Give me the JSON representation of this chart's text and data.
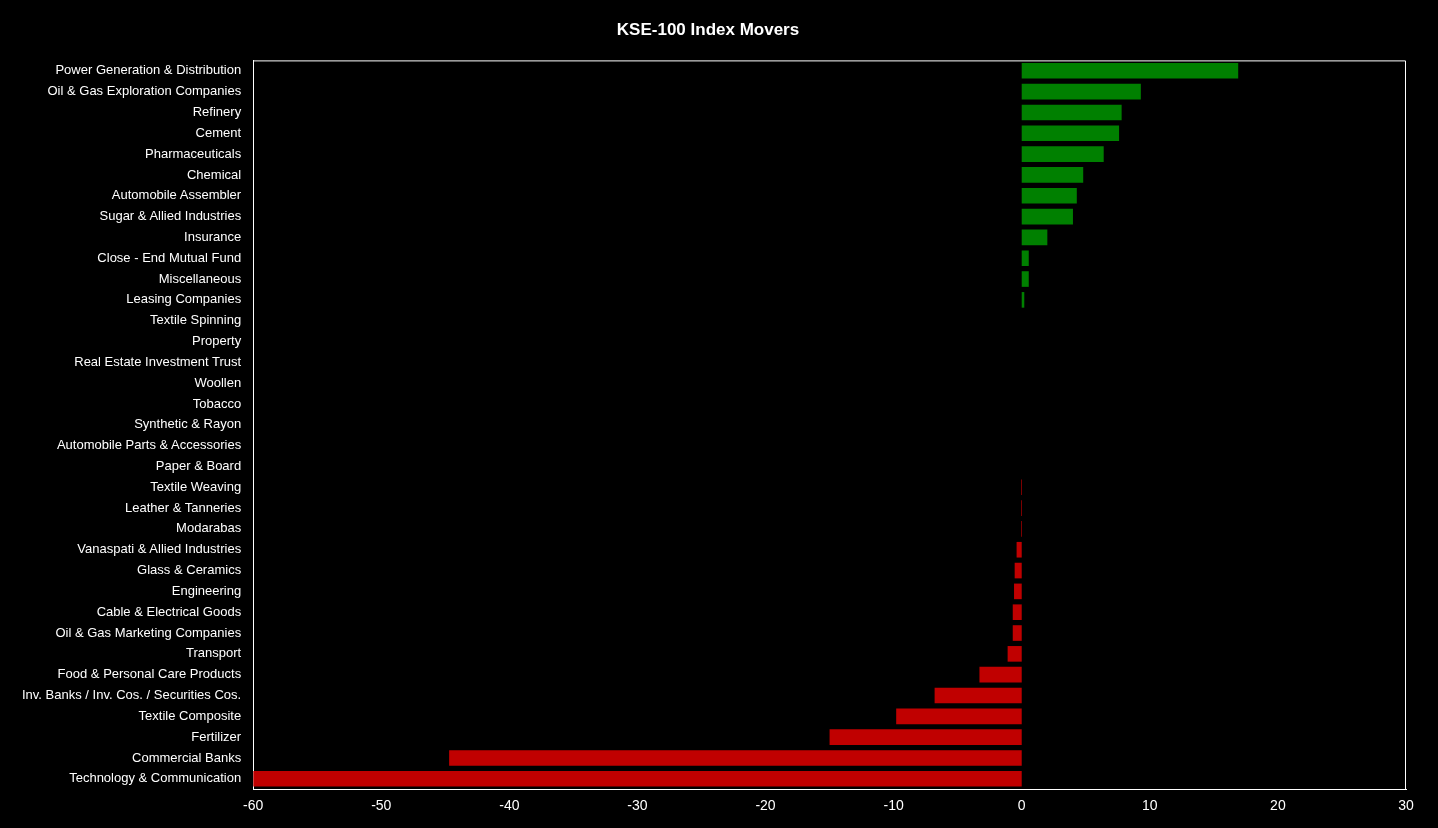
{
  "chart_data": {
    "type": "bar",
    "title": "KSE-100 Index Movers",
    "orientation": "horizontal",
    "categories": [
      "Power Generation & Distribution",
      "Oil & Gas Exploration Companies",
      "Refinery",
      "Cement",
      "Pharmaceuticals",
      "Chemical",
      "Automobile Assembler",
      "Sugar & Allied Industries",
      "Insurance",
      "Close - End Mutual Fund",
      "Miscellaneous",
      "Leasing Companies",
      "Textile Spinning",
      "Property",
      "Real Estate Investment Trust",
      "Woollen",
      "Tobacco",
      "Synthetic & Rayon",
      "Automobile Parts & Accessories",
      "Paper & Board",
      "Textile Weaving",
      "Leather & Tanneries",
      "Modarabas",
      "Vanaspati & Allied Industries",
      "Glass & Ceramics",
      "Engineering",
      "Cable & Electrical Goods",
      "Oil & Gas Marketing Companies",
      "Transport",
      "Food & Personal Care Products",
      "Inv. Banks / Inv. Cos. / Securities Cos.",
      "Textile Composite",
      "Fertilizer",
      "Commercial Banks",
      "Technology & Communication"
    ],
    "values": [
      16.9,
      9.3,
      7.8,
      7.6,
      6.4,
      4.8,
      4.3,
      4.0,
      2.0,
      0.55,
      0.55,
      0.2,
      0,
      0,
      0,
      0,
      0,
      0,
      0,
      0,
      -0.05,
      -0.05,
      -0.05,
      -0.4,
      -0.55,
      -0.6,
      -0.7,
      -0.7,
      -1.1,
      -3.3,
      -6.8,
      -9.8,
      -15.0,
      -44.7,
      -60.0
    ],
    "colors": [
      "#008000",
      "#008000",
      "#008000",
      "#008000",
      "#008000",
      "#008000",
      "#008000",
      "#008000",
      "#008000",
      "#008000",
      "#008000",
      "#008000",
      "#008000",
      "#008000",
      "#008000",
      "#008000",
      "#008000",
      "#008000",
      "#008000",
      "#008000",
      "#c00000",
      "#c00000",
      "#c00000",
      "#c00000",
      "#c00000",
      "#c00000",
      "#c00000",
      "#c00000",
      "#c00000",
      "#c00000",
      "#c00000",
      "#c00000",
      "#c00000",
      "#c00000",
      "#c00000"
    ],
    "xlim": [
      -60,
      30
    ],
    "xticks": [
      -60,
      -50,
      -40,
      -30,
      -20,
      -10,
      0,
      10,
      20,
      30
    ],
    "grid": false,
    "legend": false
  }
}
